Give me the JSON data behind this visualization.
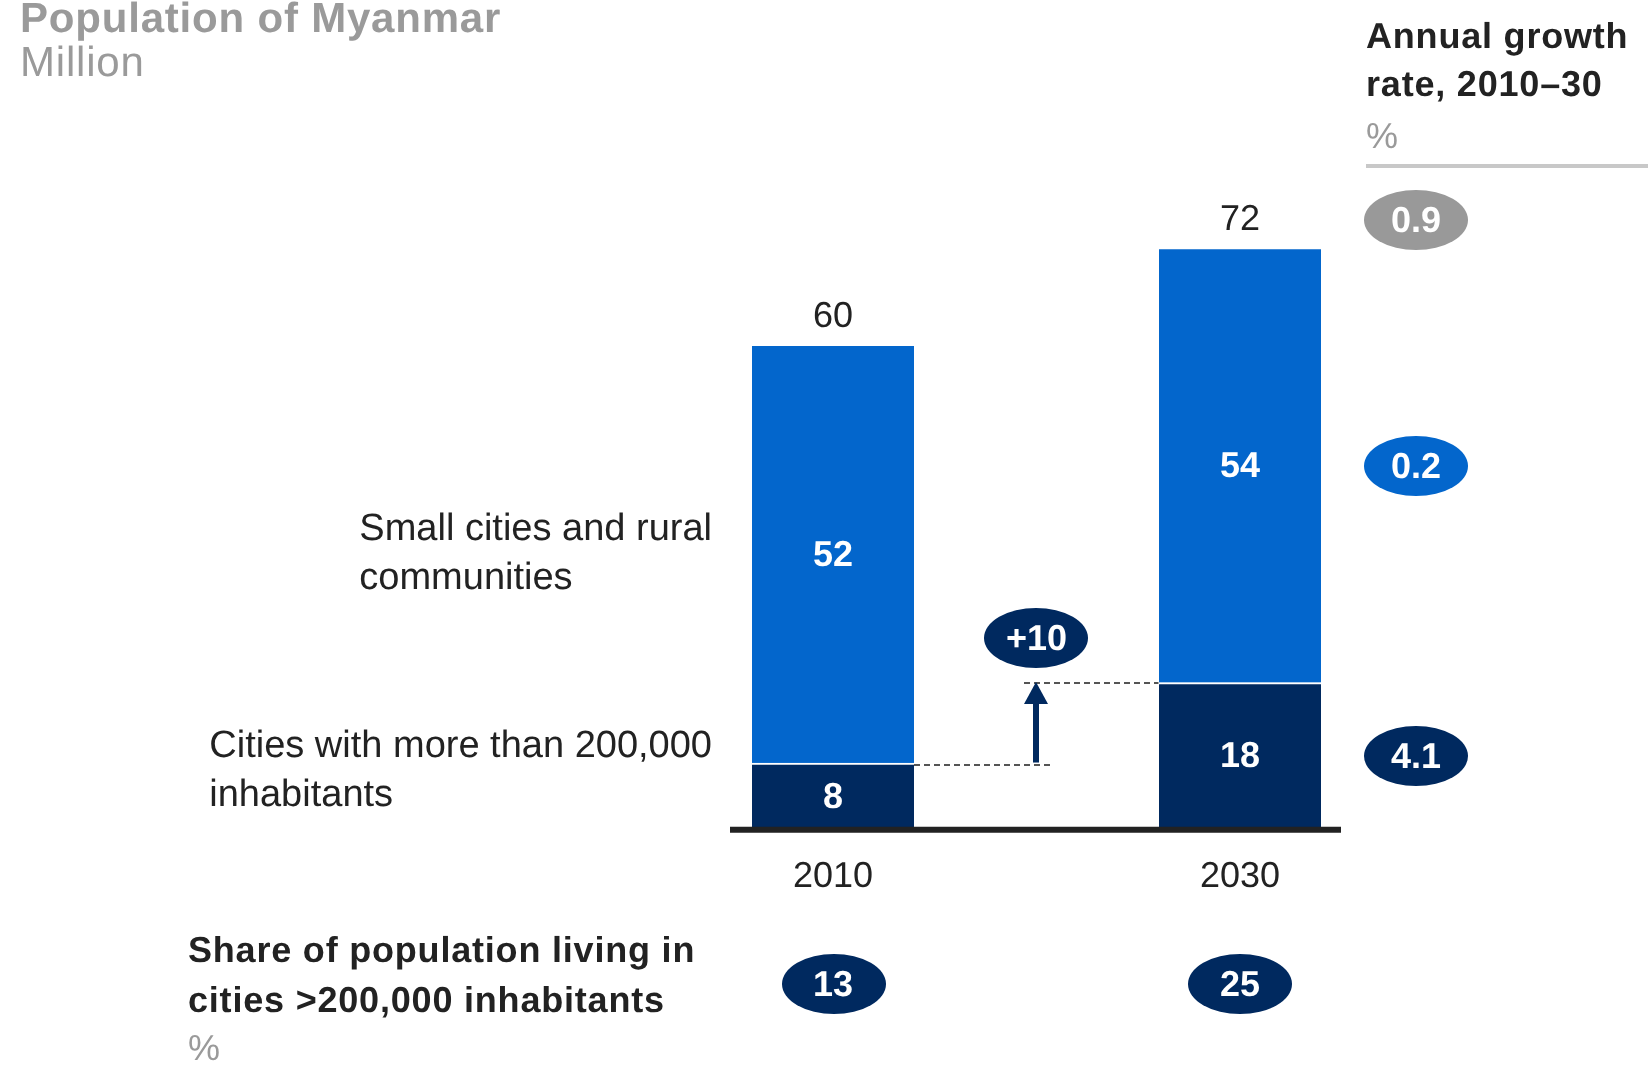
{
  "chart_data": {
    "type": "bar",
    "title": "Population of Myanmar",
    "subtitle": "Million",
    "categories": [
      "2010",
      "2030"
    ],
    "stacked": true,
    "tick_labels": "x",
    "series": [
      {
        "name": "Cities with more than 200,000 inhabitants",
        "color": "#00295f",
        "values": [
          8,
          18
        ]
      },
      {
        "name": "Small cities and rural communities",
        "color": "#0366cc",
        "values": [
          52,
          54
        ]
      }
    ],
    "data_labels": true,
    "totals": [
      "60",
      "72"
    ],
    "annotations": [
      "Annual growth rate, 2010–30",
      "%",
      "0.9",
      "0.2",
      "4.1",
      "+10",
      "Share of population living in cities >200,000 inhabitants",
      "%",
      "13",
      "25"
    ]
  }
}
